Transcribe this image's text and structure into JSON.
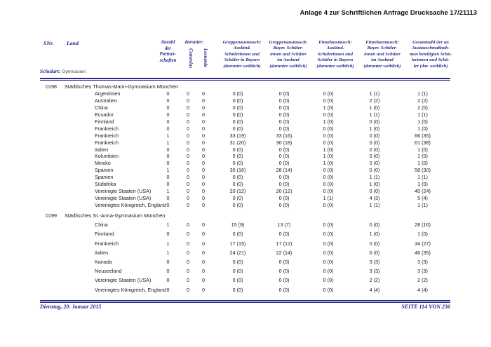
{
  "page_header": "Anlage 4 zur Schriftlichen Anfrage Drucksache 17/21113",
  "table": {
    "header": {
      "snr": "SNr.",
      "land": "Land",
      "anzahl": "Anzahl\nder\nPartner-\nschaften",
      "darunter": "darunter:",
      "comenius": "Comenius",
      "leonardo": "Leonardo",
      "gruppenaustausch_bayern": "Gruppenaustausch:\nAusländ.\nSchülerinnen und\nSchüler in Bayern\n(darunter weiblich)",
      "gruppenaustausch_ausland": "Gruppenaustausch:\nBayer. Schüler-\ninnen und Schüler\nim Ausland\n(darunter weiblich)",
      "einzelaustausch_bayern": "Einzelaustausch:\nAusländ.\nSchülerinnen und\nSchüler in Bayern\n(darunter weiblich)",
      "einzelaustausch_ausland": "Einzelaustausch:\nBayer. Schüler-\ninnen und Schüler\nim Ausland\n(darunter weiblich)",
      "gesamtzahl": "Gesamtzahl der an\nAustauschmaßnah-\nmen beteiligten Schü-\nlerinnen und Schü-\nler (dar. weiblich)"
    },
    "schulart_label": "Schulart:",
    "schulart_value": "Gymnasien",
    "groups": [
      {
        "code": "0198",
        "name": "Städtisches Thomas-Mann-Gymnasium München",
        "rows": [
          {
            "land": "Argentinien",
            "anz": "0",
            "com": "0",
            "leo": "0",
            "gab": "0 (0)",
            "gaa": "0 (0)",
            "eab": "0 (0)",
            "eaa": "1 (1)",
            "ges": "1 (1)"
          },
          {
            "land": "Australien",
            "anz": "0",
            "com": "0",
            "leo": "0",
            "gab": "0 (0)",
            "gaa": "0 (0)",
            "eab": "0 (0)",
            "eaa": "2 (2)",
            "ges": "2 (2)"
          },
          {
            "land": "China",
            "anz": "0",
            "com": "0",
            "leo": "0",
            "gab": "0 (0)",
            "gaa": "0 (0)",
            "eab": "1 (0)",
            "eaa": "1 (0)",
            "ges": "2 (0)"
          },
          {
            "land": "Ecuador",
            "anz": "0",
            "com": "0",
            "leo": "0",
            "gab": "0 (0)",
            "gaa": "0 (0)",
            "eab": "0 (0)",
            "eaa": "1 (1)",
            "ges": "1 (1)"
          },
          {
            "land": "Finnland",
            "anz": "0",
            "com": "0",
            "leo": "0",
            "gab": "0 (0)",
            "gaa": "0 (0)",
            "eab": "1 (0)",
            "eaa": "0 (0)",
            "ges": "1 (0)"
          },
          {
            "land": "Frankreich",
            "anz": "0",
            "com": "0",
            "leo": "0",
            "gab": "0 (0)",
            "gaa": "0 (0)",
            "eab": "0 (0)",
            "eaa": "1 (0)",
            "ges": "1 (0)"
          },
          {
            "land": "Frankreich",
            "anz": "1",
            "com": "0",
            "leo": "0",
            "gab": "33 (19)",
            "gaa": "33 (16)",
            "eab": "0 (0)",
            "eaa": "0 (0)",
            "ges": "66 (35)"
          },
          {
            "land": "Frankreich",
            "anz": "1",
            "com": "0",
            "leo": "0",
            "gab": "31 (20)",
            "gaa": "30 (18)",
            "eab": "0 (0)",
            "eaa": "0 (0)",
            "ges": "61 (38)"
          },
          {
            "land": "Italien",
            "anz": "0",
            "com": "0",
            "leo": "0",
            "gab": "0 (0)",
            "gaa": "0 (0)",
            "eab": "1 (0)",
            "eaa": "0 (0)",
            "ges": "1 (0)"
          },
          {
            "land": "Kolumbien",
            "anz": "0",
            "com": "0",
            "leo": "0",
            "gab": "0 (0)",
            "gaa": "0 (0)",
            "eab": "1 (0)",
            "eaa": "0 (0)",
            "ges": "1 (0)"
          },
          {
            "land": "Mexiko",
            "anz": "0",
            "com": "0",
            "leo": "0",
            "gab": "0 (0)",
            "gaa": "0 (0)",
            "eab": "1 (0)",
            "eaa": "0 (0)",
            "ges": "1 (0)"
          },
          {
            "land": "Spanien",
            "anz": "1",
            "com": "0",
            "leo": "0",
            "gab": "30 (16)",
            "gaa": "28 (14)",
            "eab": "0 (0)",
            "eaa": "0 (0)",
            "ges": "58 (30)"
          },
          {
            "land": "Spanien",
            "anz": "0",
            "com": "0",
            "leo": "0",
            "gab": "0 (0)",
            "gaa": "0 (0)",
            "eab": "0 (0)",
            "eaa": "1 (1)",
            "ges": "1 (1)"
          },
          {
            "land": "Südafrika",
            "anz": "0",
            "com": "0",
            "leo": "0",
            "gab": "0 (0)",
            "gaa": "0 (0)",
            "eab": "0 (0)",
            "eaa": "1 (0)",
            "ges": "1 (0)"
          },
          {
            "land": "Vereinigte Staaten (USA)",
            "anz": "1",
            "com": "0",
            "leo": "0",
            "gab": "20 (12)",
            "gaa": "20 (12)",
            "eab": "0 (0)",
            "eaa": "0 (0)",
            "ges": "40 (24)"
          },
          {
            "land": "Vereinigte Staaten (USA)",
            "anz": "0",
            "com": "0",
            "leo": "0",
            "gab": "0 (0)",
            "gaa": "0 (0)",
            "eab": "1 (1)",
            "eaa": "4 (3)",
            "ges": "5 (4)"
          },
          {
            "land": "Vereinigtes Königreich, England",
            "anz": "0",
            "com": "0",
            "leo": "0",
            "gab": "0 (0)",
            "gaa": "0 (0)",
            "eab": "0 (0)",
            "eaa": "1 (1)",
            "ges": "1 (1)"
          }
        ]
      },
      {
        "code": "0199",
        "name": "Städtisches St.-Anna-Gymnasium München",
        "rows": [
          {
            "land": "China",
            "anz": "1",
            "com": "0",
            "leo": "0",
            "gab": "15 (9)",
            "gaa": "13 (7)",
            "eab": "0 (0)",
            "eaa": "0 (0)",
            "ges": "28 (16)"
          },
          {
            "land": "Finnland",
            "anz": "0",
            "com": "0",
            "leo": "0",
            "gab": "0 (0)",
            "gaa": "0 (0)",
            "eab": "0 (0)",
            "eaa": "1 (0)",
            "ges": "1 (0)"
          },
          {
            "land": "Frankreich",
            "anz": "1",
            "com": "0",
            "leo": "0",
            "gab": "17 (15)",
            "gaa": "17 (12)",
            "eab": "0 (0)",
            "eaa": "0 (0)",
            "ges": "34 (27)"
          },
          {
            "land": "Italien",
            "anz": "1",
            "com": "0",
            "leo": "0",
            "gab": "24 (21)",
            "gaa": "22 (14)",
            "eab": "0 (0)",
            "eaa": "0 (0)",
            "ges": "46 (35)"
          },
          {
            "land": "Kanada",
            "anz": "0",
            "com": "0",
            "leo": "0",
            "gab": "0 (0)",
            "gaa": "0 (0)",
            "eab": "0 (0)",
            "eaa": "3 (3)",
            "ges": "3 (3)"
          },
          {
            "land": "Neuseeland",
            "anz": "0",
            "com": "0",
            "leo": "0",
            "gab": "0 (0)",
            "gaa": "0 (0)",
            "eab": "0 (0)",
            "eaa": "3 (3)",
            "ges": "3 (3)"
          },
          {
            "land": "Vereinigte Staaten (USA)",
            "anz": "0",
            "com": "0",
            "leo": "0",
            "gab": "0 (0)",
            "gaa": "0 (0)",
            "eab": "0 (0)",
            "eaa": "2 (2)",
            "ges": "2 (2)"
          },
          {
            "land": "Vereinigtes Königreich, England",
            "anz": "0",
            "com": "0",
            "leo": "0",
            "gab": "0 (0)",
            "gaa": "0 (0)",
            "eab": "0 (0)",
            "eaa": "4 (4)",
            "ges": "4 (4)"
          }
        ]
      }
    ]
  },
  "footer": {
    "date": "Dienstag, 20. Januar 2015",
    "page": "SEITE 114 VON 236"
  }
}
